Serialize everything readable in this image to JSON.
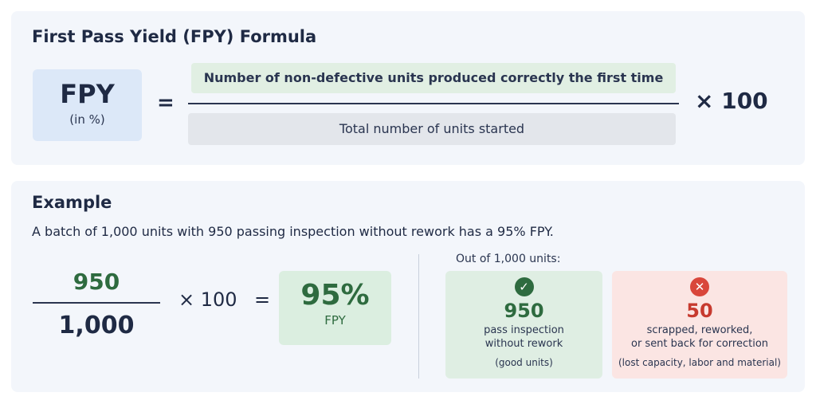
{
  "formula": {
    "title": "First Pass Yield (FPY) Formula",
    "lhs_main": "FPY",
    "lhs_sub": "(in %)",
    "equals": "=",
    "numerator": "Number of non-defective units produced correctly the first time",
    "denominator": "Total number of units started",
    "multiplier": "× 100"
  },
  "example": {
    "title": "Example",
    "description": "A batch of 1,000 units with 950 passing inspection without rework has a 95% FPY.",
    "numerator": "950",
    "denominator": "1,000",
    "multiplier": "× 100",
    "equals": "=",
    "result_value": "95%",
    "result_label": "FPY",
    "breakdown_title": "Out of 1,000 units:",
    "good": {
      "icon": "check-circle-icon",
      "count": "950",
      "line1": "pass inspection",
      "line2": "without rework",
      "note": "(good units)"
    },
    "bad": {
      "icon": "x-circle-icon",
      "count": "50",
      "line1": "scrapped, reworked,",
      "line2": "or sent back for correction",
      "note": "(lost capacity, labor and material)"
    }
  },
  "colors": {
    "accent_green": "#2e6b3f",
    "accent_red": "#d9463b",
    "text_dark": "#1f2a44"
  }
}
